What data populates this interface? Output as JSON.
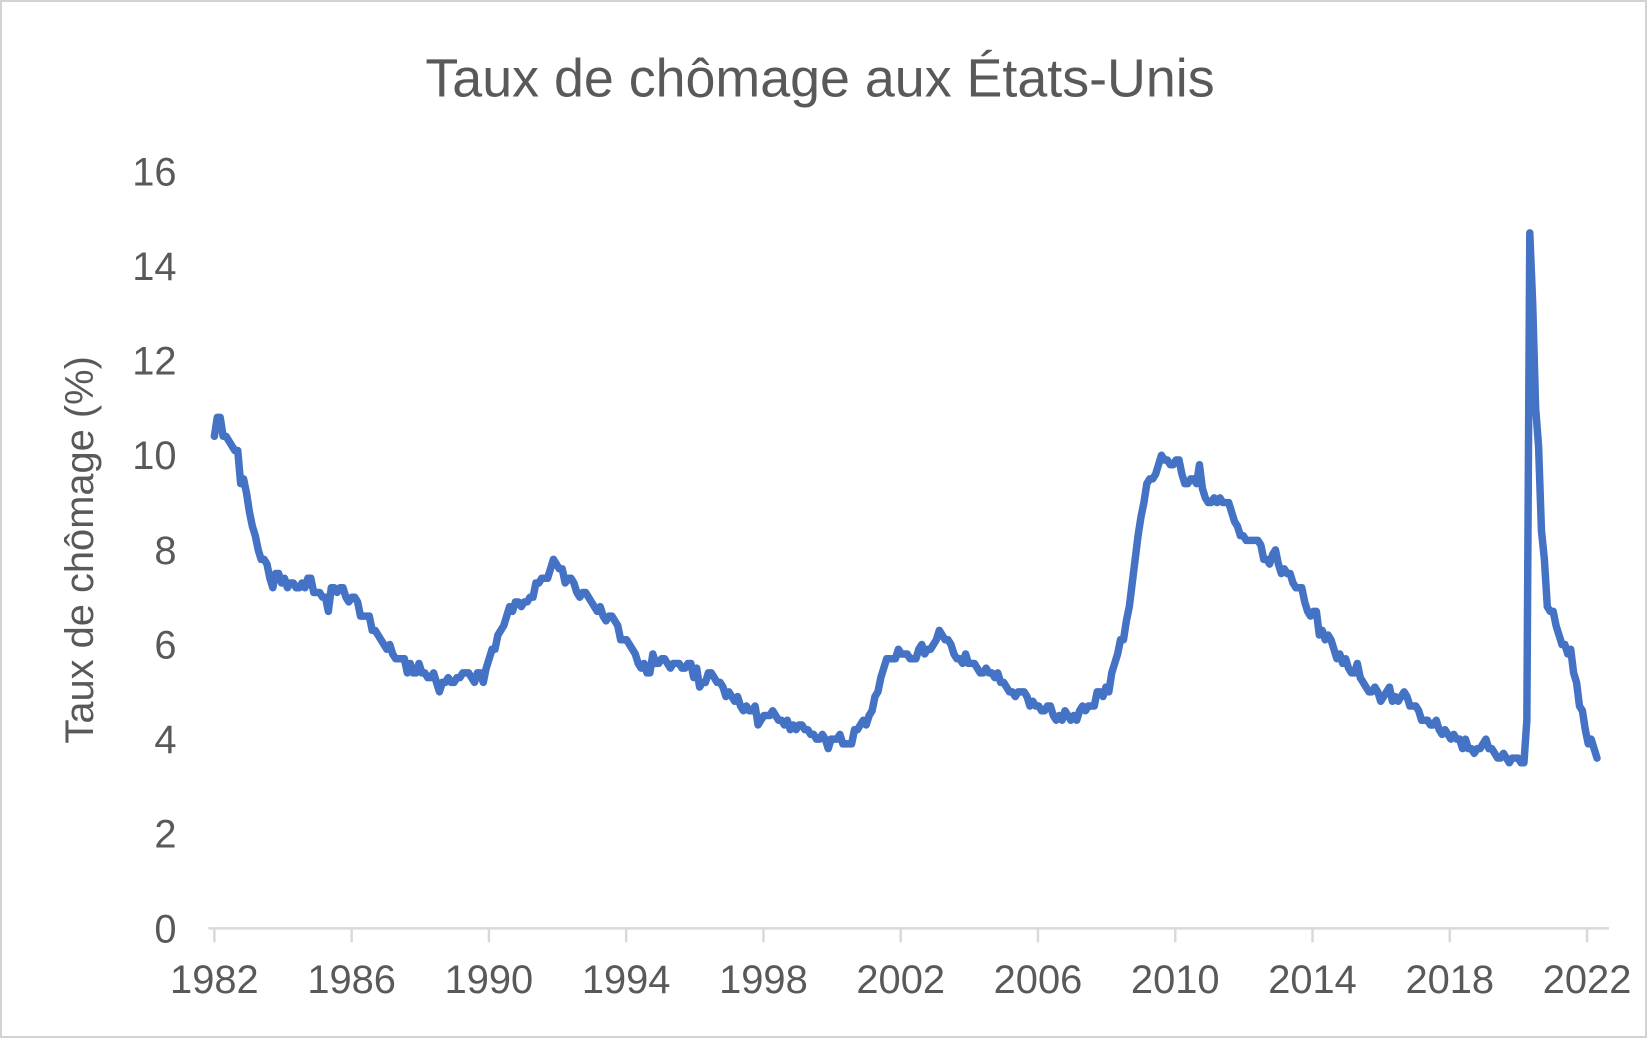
{
  "window": {
    "background": "#ffffff",
    "border_color": "#d2d2d2"
  },
  "chart_data": {
    "type": "line",
    "title": "Taux de chômage aux États-Unis",
    "xlabel": "",
    "ylabel": "Taux de chômage (%)",
    "legend": "none",
    "grid": false,
    "ylim": [
      0,
      16
    ],
    "y_tick_labels": [
      "0",
      "2",
      "4",
      "6",
      "8",
      "10",
      "12",
      "14",
      "16"
    ],
    "x_tick_labels": [
      "1982",
      "1986",
      "1990",
      "1994",
      "1998",
      "2002",
      "2006",
      "2010",
      "2014",
      "2018",
      "2022"
    ],
    "text_color": "#595959",
    "axis_color": "#d9d9d9",
    "line_color": "#4472C4",
    "series": [
      {
        "name": "Taux de chômage (%)",
        "frequency": "monthly",
        "start": "1982-10",
        "end": "2022-03",
        "values_by_year": {
          "1982": [
            10.4,
            10.8,
            10.8
          ],
          "1983": [
            10.4,
            10.4,
            10.3,
            10.2,
            10.1,
            10.1,
            9.4,
            9.5,
            9.2,
            8.8,
            8.5,
            8.3
          ],
          "1984": [
            8.0,
            7.8,
            7.8,
            7.7,
            7.4,
            7.2,
            7.5,
            7.5,
            7.3,
            7.4,
            7.2,
            7.3
          ],
          "1985": [
            7.3,
            7.2,
            7.2,
            7.3,
            7.2,
            7.4,
            7.4,
            7.1,
            7.1,
            7.1,
            7.0,
            7.0
          ],
          "1986": [
            6.7,
            7.2,
            7.2,
            7.1,
            7.2,
            7.2,
            7.0,
            6.9,
            7.0,
            7.0,
            6.9,
            6.6
          ],
          "1987": [
            6.6,
            6.6,
            6.6,
            6.3,
            6.3,
            6.2,
            6.1,
            6.0,
            5.9,
            6.0,
            5.8,
            5.7
          ],
          "1988": [
            5.7,
            5.7,
            5.7,
            5.4,
            5.6,
            5.4,
            5.4,
            5.6,
            5.4,
            5.4,
            5.3,
            5.3
          ],
          "1989": [
            5.4,
            5.2,
            5.0,
            5.2,
            5.2,
            5.3,
            5.2,
            5.2,
            5.3,
            5.3,
            5.4,
            5.4
          ],
          "1990": [
            5.4,
            5.3,
            5.2,
            5.4,
            5.4,
            5.2,
            5.5,
            5.7,
            5.9,
            5.9,
            6.2,
            6.3
          ],
          "1991": [
            6.4,
            6.6,
            6.8,
            6.7,
            6.9,
            6.9,
            6.8,
            6.9,
            6.9,
            7.0,
            7.0,
            7.3
          ],
          "1992": [
            7.3,
            7.4,
            7.4,
            7.4,
            7.6,
            7.8,
            7.7,
            7.6,
            7.6,
            7.3,
            7.4,
            7.4
          ],
          "1993": [
            7.3,
            7.1,
            7.0,
            7.1,
            7.1,
            7.0,
            6.9,
            6.8,
            6.7,
            6.8,
            6.6,
            6.5
          ],
          "1994": [
            6.6,
            6.6,
            6.5,
            6.4,
            6.1,
            6.1,
            6.1,
            6.0,
            5.9,
            5.8,
            5.6,
            5.5
          ],
          "1995": [
            5.6,
            5.4,
            5.4,
            5.8,
            5.6,
            5.6,
            5.7,
            5.7,
            5.6,
            5.5,
            5.6,
            5.6
          ],
          "1996": [
            5.6,
            5.5,
            5.5,
            5.6,
            5.6,
            5.3,
            5.5,
            5.1,
            5.2,
            5.2,
            5.4,
            5.4
          ],
          "1997": [
            5.3,
            5.2,
            5.2,
            5.1,
            4.9,
            5.0,
            4.9,
            4.8,
            4.9,
            4.7,
            4.6,
            4.7
          ],
          "1998": [
            4.6,
            4.6,
            4.7,
            4.3,
            4.4,
            4.5,
            4.5,
            4.5,
            4.6,
            4.5,
            4.4,
            4.4
          ],
          "1999": [
            4.3,
            4.4,
            4.2,
            4.3,
            4.2,
            4.3,
            4.3,
            4.2,
            4.2,
            4.1,
            4.1,
            4.0
          ],
          "2000": [
            4.0,
            4.1,
            4.0,
            3.8,
            4.0,
            4.0,
            4.0,
            4.1,
            3.9,
            3.9,
            3.9,
            3.9
          ],
          "2001": [
            4.2,
            4.2,
            4.3,
            4.4,
            4.3,
            4.5,
            4.6,
            4.9,
            5.0,
            5.3,
            5.5,
            5.7
          ],
          "2002": [
            5.7,
            5.7,
            5.7,
            5.9,
            5.8,
            5.8,
            5.8,
            5.7,
            5.7,
            5.7,
            5.9,
            6.0
          ],
          "2003": [
            5.8,
            5.9,
            5.9,
            6.0,
            6.1,
            6.3,
            6.2,
            6.1,
            6.1,
            6.0,
            5.8,
            5.7
          ],
          "2004": [
            5.7,
            5.6,
            5.8,
            5.6,
            5.6,
            5.6,
            5.5,
            5.4,
            5.4,
            5.5,
            5.4,
            5.4
          ],
          "2005": [
            5.3,
            5.4,
            5.2,
            5.2,
            5.1,
            5.0,
            5.0,
            4.9,
            5.0,
            5.0,
            5.0,
            4.9
          ],
          "2006": [
            4.7,
            4.8,
            4.7,
            4.7,
            4.6,
            4.6,
            4.7,
            4.7,
            4.5,
            4.4,
            4.5,
            4.4
          ],
          "2007": [
            4.6,
            4.5,
            4.4,
            4.5,
            4.4,
            4.6,
            4.7,
            4.6,
            4.7,
            4.7,
            4.7,
            5.0
          ],
          "2008": [
            5.0,
            4.9,
            5.1,
            5.0,
            5.4,
            5.6,
            5.8,
            6.1,
            6.1,
            6.5,
            6.8,
            7.3
          ],
          "2009": [
            7.8,
            8.3,
            8.7,
            9.0,
            9.4,
            9.5,
            9.5,
            9.6,
            9.8,
            10.0,
            9.9,
            9.9
          ],
          "2010": [
            9.8,
            9.8,
            9.9,
            9.9,
            9.6,
            9.4,
            9.4,
            9.5,
            9.5,
            9.4,
            9.8,
            9.3
          ],
          "2011": [
            9.1,
            9.0,
            9.0,
            9.1,
            9.0,
            9.1,
            9.0,
            9.0,
            9.0,
            8.8,
            8.6,
            8.5
          ],
          "2012": [
            8.3,
            8.3,
            8.2,
            8.2,
            8.2,
            8.2,
            8.2,
            8.1,
            7.8,
            7.8,
            7.7,
            7.9
          ],
          "2013": [
            8.0,
            7.7,
            7.5,
            7.6,
            7.5,
            7.5,
            7.3,
            7.2,
            7.2,
            7.2,
            6.9,
            6.7
          ],
          "2014": [
            6.6,
            6.7,
            6.7,
            6.2,
            6.3,
            6.1,
            6.2,
            6.1,
            5.9,
            5.7,
            5.8,
            5.6
          ],
          "2015": [
            5.7,
            5.5,
            5.4,
            5.4,
            5.6,
            5.3,
            5.2,
            5.1,
            5.0,
            5.0,
            5.1,
            5.0
          ],
          "2016": [
            4.8,
            4.9,
            5.0,
            5.1,
            4.8,
            4.9,
            4.8,
            4.9,
            5.0,
            4.9,
            4.7,
            4.7
          ],
          "2017": [
            4.7,
            4.6,
            4.4,
            4.4,
            4.4,
            4.3,
            4.3,
            4.4,
            4.2,
            4.1,
            4.2,
            4.1
          ],
          "2018": [
            4.0,
            4.1,
            4.0,
            4.0,
            3.8,
            4.0,
            3.8,
            3.8,
            3.7,
            3.8,
            3.8,
            3.9
          ],
          "2019": [
            4.0,
            3.8,
            3.8,
            3.7,
            3.6,
            3.6,
            3.7,
            3.6,
            3.5,
            3.6,
            3.6,
            3.6
          ],
          "2020": [
            3.5,
            3.5,
            4.4,
            14.7,
            13.2,
            11.0,
            10.2,
            8.4,
            7.8,
            6.8,
            6.7,
            6.7
          ],
          "2021": [
            6.4,
            6.2,
            6.0,
            6.0,
            5.8,
            5.9,
            5.4,
            5.2,
            4.7,
            4.6,
            4.2,
            3.9
          ],
          "2022": [
            4.0,
            3.8,
            3.6
          ]
        }
      }
    ]
  }
}
